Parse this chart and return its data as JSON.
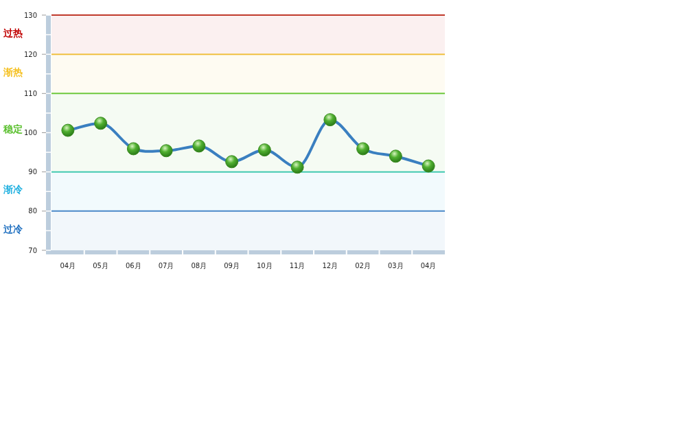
{
  "chart_data": {
    "type": "line",
    "categories": [
      "04月",
      "05月",
      "06月",
      "07月",
      "08月",
      "09月",
      "10月",
      "11月",
      "12月",
      "02月",
      "03月",
      "04月"
    ],
    "series": [
      {
        "color": "#3a7fc0",
        "values": [
          100.6,
          102.4,
          95.9,
          95.4,
          96.6,
          92.6,
          95.6,
          91.2,
          103.3,
          95.9,
          94.0,
          91.5
        ]
      }
    ],
    "marker": "circle",
    "ylim": [
      70,
      130
    ],
    "yticks": [
      70,
      {
        "value": 75,
        "label": null
      },
      80,
      {
        "value": 85,
        "label": null
      },
      90,
      {
        "value": 95,
        "label": null
      },
      100,
      {
        "value": 105,
        "label": null
      },
      110,
      {
        "value": 115,
        "label": null
      },
      120,
      {
        "value": 125,
        "label": null
      },
      130
    ],
    "ref_lines": [
      {
        "axis": "y",
        "value": 130,
        "color": "#c0392b"
      },
      {
        "axis": "y",
        "value": 120,
        "color": "#f0c040"
      },
      {
        "axis": "y",
        "value": 110,
        "color": "#6cc83c"
      },
      {
        "axis": "y",
        "value": 90,
        "color": "#40c8b0"
      },
      {
        "axis": "y",
        "value": 80,
        "color": "#4a88c8"
      }
    ],
    "bands": [
      {
        "axis": "y",
        "from": 120,
        "to": 130,
        "label": "过热",
        "color": "#c00000"
      },
      {
        "axis": "y",
        "from": 110,
        "to": 120,
        "label": "渐热",
        "color": "#f5c020"
      },
      {
        "axis": "y",
        "from": 90,
        "to": 110,
        "label": "稳定",
        "color": "#5cc030"
      },
      {
        "axis": "y",
        "from": 80,
        "to": 90,
        "label": "渐冷",
        "color": "#20b0e0"
      },
      {
        "axis": "y",
        "from": 70,
        "to": 80,
        "label": "过冷",
        "color": "#2070c0"
      }
    ],
    "grid": false
  }
}
